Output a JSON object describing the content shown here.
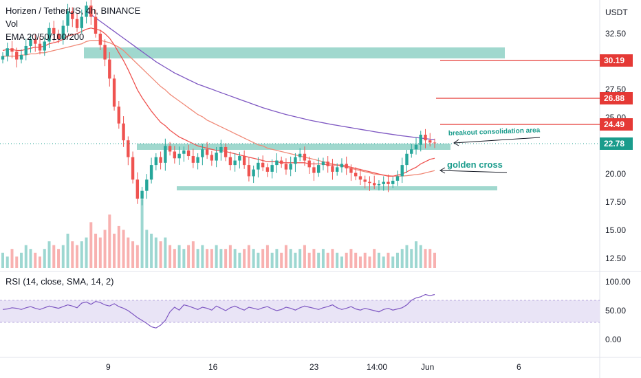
{
  "header": {
    "title": "Horizen / TetherUS, 4h, BINANCE",
    "vol": "Vol",
    "ema": "EMA 20/50/100/200"
  },
  "rsi": {
    "label": "RSI (14, close, SMA, 14, 2)",
    "ticks": [
      "100.00",
      "50.00",
      "0.00"
    ],
    "values": [
      52,
      53,
      55,
      54,
      52,
      55,
      57,
      54,
      52,
      55,
      58,
      56,
      54,
      57,
      60,
      58,
      55,
      63,
      65,
      61,
      66,
      64,
      60,
      58,
      62,
      57,
      54,
      50,
      44,
      38,
      33,
      28,
      22,
      20,
      25,
      33,
      48,
      56,
      51,
      60,
      58,
      55,
      52,
      56,
      54,
      51,
      58,
      54,
      50,
      55,
      58,
      54,
      51,
      56,
      54,
      52,
      55,
      57,
      53,
      50,
      52,
      56,
      54,
      51,
      55,
      58,
      56,
      54,
      52,
      55,
      57,
      60,
      55,
      52,
      54,
      57,
      53,
      51,
      54,
      52,
      50,
      48,
      52,
      54,
      51,
      53,
      55,
      60,
      68,
      72,
      74,
      78,
      76,
      78
    ]
  },
  "colors": {
    "up": "#26a69a",
    "down": "#ef5350",
    "ema20": "#ef5350",
    "ema50": "#f08a78",
    "ema200": "#7e57c2",
    "zone": "#8fd1c6",
    "level": "#e53935",
    "price": "#1a9c8c",
    "rsi_line": "#7e57c2",
    "rsi_band": "#e9e4f6"
  },
  "annotations": {
    "breakout": "breakout consolidation area",
    "golden": "golden cross"
  },
  "chart_data": {
    "type": "candlestick",
    "y_unit": "USDT",
    "y_ticks": [
      "32.50",
      "27.50",
      "25.00",
      "20.00",
      "17.50",
      "15.00",
      "12.50"
    ],
    "x_ticks": [
      "9",
      "16",
      "23",
      "14:00",
      "Jun",
      "6"
    ],
    "ylim": [
      11.5,
      35.5
    ],
    "price_labels": [
      "30.19",
      "26.88",
      "24.49",
      "22.78"
    ],
    "zones": [
      {
        "name": "resistance",
        "low": 30.2,
        "high": 31.0
      },
      {
        "name": "breakout",
        "low": 22.2,
        "high": 22.6
      },
      {
        "name": "support",
        "low": 18.8,
        "high": 19.0
      }
    ],
    "close": [
      30.5,
      31.2,
      30.9,
      30.2,
      30.6,
      31.4,
      32.0,
      31.6,
      31.0,
      31.8,
      33.0,
      32.5,
      32.0,
      33.2,
      34.5,
      33.8,
      33.0,
      34.0,
      35.0,
      34.0,
      32.5,
      31.5,
      30.2,
      28.5,
      26.0,
      24.5,
      23.0,
      21.5,
      19.5,
      17.8,
      18.5,
      19.5,
      20.8,
      21.5,
      21.0,
      22.5,
      22.0,
      21.4,
      21.8,
      22.1,
      21.6,
      21.0,
      21.5,
      22.2,
      21.7,
      21.2,
      21.9,
      22.4,
      21.5,
      20.8,
      21.2,
      21.6,
      20.8,
      19.8,
      20.4,
      21.0,
      20.6,
      20.2,
      20.8,
      21.2,
      20.9,
      20.4,
      20.9,
      21.5,
      21.8,
      21.2,
      20.6,
      20.1,
      20.8,
      21.1,
      20.7,
      20.2,
      20.6,
      20.9,
      20.5,
      20.1,
      19.8,
      19.5,
      19.3,
      19.2,
      19.0,
      19.1,
      19.3,
      19.1,
      19.4,
      19.8,
      20.8,
      21.8,
      22.2,
      22.6,
      23.5,
      23.0,
      22.8,
      22.78
    ],
    "volume": [
      4,
      3,
      5,
      3,
      4,
      6,
      5,
      4,
      3,
      5,
      7,
      6,
      5,
      6,
      9,
      7,
      6,
      7,
      8,
      12,
      9,
      8,
      10,
      14,
      9,
      11,
      10,
      8,
      7,
      6,
      18,
      10,
      9,
      8,
      7,
      8,
      6,
      5,
      6,
      5,
      6,
      7,
      5,
      6,
      5,
      5,
      6,
      5,
      5,
      6,
      5,
      4,
      5,
      6,
      5,
      4,
      5,
      6,
      4,
      5,
      4,
      6,
      5,
      4,
      5,
      6,
      4,
      5,
      4,
      5,
      4,
      5,
      4,
      3,
      4,
      5,
      4,
      3,
      4,
      3,
      5,
      4,
      3,
      4,
      3,
      4,
      5,
      6,
      5,
      7,
      6,
      5,
      5,
      4
    ],
    "ema20": [
      31.0,
      31.1,
      31.1,
      31.0,
      31.0,
      31.1,
      31.2,
      31.3,
      31.3,
      31.4,
      31.6,
      31.7,
      31.8,
      32.0,
      32.3,
      32.4,
      32.5,
      32.7,
      32.9,
      33.0,
      32.9,
      32.8,
      32.5,
      32.1,
      31.5,
      30.8,
      30.1,
      29.3,
      28.4,
      27.5,
      26.8,
      26.2,
      25.6,
      25.1,
      24.6,
      24.3,
      23.9,
      23.6,
      23.3,
      23.1,
      22.9,
      22.7,
      22.5,
      22.4,
      22.3,
      22.2,
      22.1,
      22.1,
      22.0,
      21.9,
      21.8,
      21.7,
      21.6,
      21.5,
      21.4,
      21.3,
      21.2,
      21.1,
      21.1,
      21.1,
      21.0,
      21.0,
      21.0,
      21.0,
      21.0,
      21.0,
      20.9,
      20.9,
      20.9,
      20.9,
      20.8,
      20.8,
      20.8,
      20.8,
      20.7,
      20.6,
      20.5,
      20.4,
      20.3,
      20.2,
      20.1,
      20.0,
      19.9,
      19.8,
      19.8,
      19.9,
      20.0,
      20.2,
      20.4,
      20.6,
      20.9,
      21.1,
      21.3,
      21.4
    ],
    "ema50": [
      30.5,
      30.5,
      30.5,
      30.5,
      30.6,
      30.6,
      30.7,
      30.7,
      30.8,
      30.8,
      30.9,
      31.0,
      31.1,
      31.2,
      31.3,
      31.4,
      31.5,
      31.6,
      31.8,
      31.9,
      31.9,
      31.9,
      31.8,
      31.7,
      31.5,
      31.3,
      31.0,
      30.6,
      30.2,
      29.8,
      29.4,
      29.0,
      28.6,
      28.2,
      27.8,
      27.5,
      27.1,
      26.8,
      26.5,
      26.2,
      25.9,
      25.6,
      25.3,
      25.1,
      24.8,
      24.6,
      24.4,
      24.2,
      24.0,
      23.8,
      23.6,
      23.4,
      23.2,
      23.0,
      22.8,
      22.6,
      22.5,
      22.3,
      22.2,
      22.1,
      22.0,
      21.9,
      21.8,
      21.7,
      21.6,
      21.5,
      21.4,
      21.3,
      21.2,
      21.1,
      21.0,
      20.9,
      20.8,
      20.7,
      20.6,
      20.5,
      20.4,
      20.3,
      20.2,
      20.1,
      20.0,
      19.95,
      19.9,
      19.85,
      19.82,
      19.8,
      19.82,
      19.85,
      19.9,
      19.95,
      20.0,
      20.1,
      20.2,
      20.3
    ],
    "ema200": [
      null,
      null,
      null,
      null,
      null,
      null,
      null,
      null,
      null,
      null,
      null,
      null,
      null,
      null,
      null,
      null,
      null,
      null,
      34.5,
      34.2,
      33.9,
      33.6,
      33.3,
      33.0,
      32.7,
      32.4,
      32.1,
      31.8,
      31.5,
      31.2,
      30.9,
      30.6,
      30.3,
      30.0,
      29.75,
      29.5,
      29.25,
      29.0,
      28.8,
      28.6,
      28.4,
      28.2,
      28.0,
      27.85,
      27.7,
      27.55,
      27.4,
      27.25,
      27.1,
      26.95,
      26.8,
      26.65,
      26.5,
      26.35,
      26.2,
      26.05,
      25.9,
      25.78,
      25.65,
      25.53,
      25.41,
      25.3,
      25.2,
      25.1,
      25.0,
      24.9,
      24.8,
      24.72,
      24.64,
      24.56,
      24.48,
      24.4,
      24.33,
      24.26,
      24.19,
      24.12,
      24.05,
      23.98,
      23.91,
      23.84,
      23.77,
      23.7,
      23.64,
      23.58,
      23.52,
      23.46,
      23.4,
      23.35,
      23.3,
      23.25,
      23.2,
      23.15,
      23.1,
      23.05
    ]
  }
}
